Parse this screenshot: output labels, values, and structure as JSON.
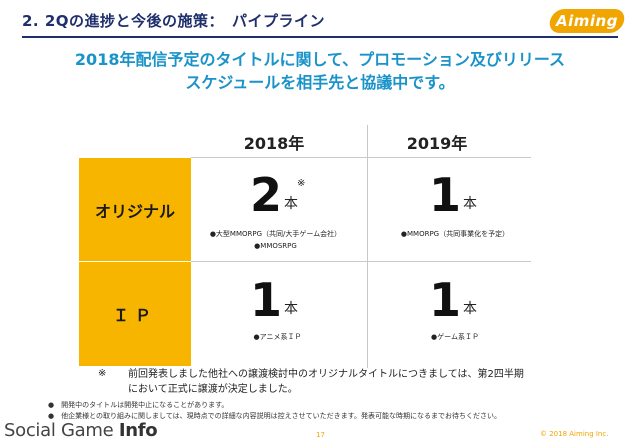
{
  "header": {
    "title": "2. 2Qの進捗と今後の施策：　パイプライン",
    "logo_text": "Aiming"
  },
  "headline": {
    "line1": "2018年配信予定のタイトルに関して、プロモーション及びリリース",
    "line2": "スケジュールを相手先と協議中です。"
  },
  "table": {
    "columns": [
      "2018年",
      "2019年"
    ],
    "rows": [
      {
        "label": "オリジナル",
        "cells": [
          {
            "count": "2",
            "unit": "本",
            "mark": "※",
            "notes": [
              "●大型MMORPG（共同/大手ゲーム会社）",
              "●MMOSRPG"
            ]
          },
          {
            "count": "1",
            "unit": "本",
            "notes": [
              "●MMORPG（共同事業化を予定）"
            ]
          }
        ]
      },
      {
        "label": "ＩＰ",
        "cells": [
          {
            "count": "1",
            "unit": "本",
            "notes": [
              "●アニメ系ＩＰ"
            ]
          },
          {
            "count": "1",
            "unit": "本",
            "notes": [
              "●ゲーム系ＩＰ"
            ]
          }
        ]
      }
    ]
  },
  "footnote": {
    "mark": "※",
    "line1": "前回発表しました他社への譲渡検討中のオリジナルタイトルにつきましては、第2四半期",
    "line2": "において正式に譲渡が決定しました。"
  },
  "disclaimer": {
    "line1": "●　開発中のタイトルは開発中止になることがあります。",
    "line2": "●　他企業様との取り組みに関しましては、現時点での詳細な内容説明は控えさせていただきます。発表可能な時期になるまでお待ちください。"
  },
  "footer": {
    "brand_social": "Social Game ",
    "brand_info": "Info",
    "page_number": "17",
    "copyright": "© 2018 Aiming Inc."
  }
}
